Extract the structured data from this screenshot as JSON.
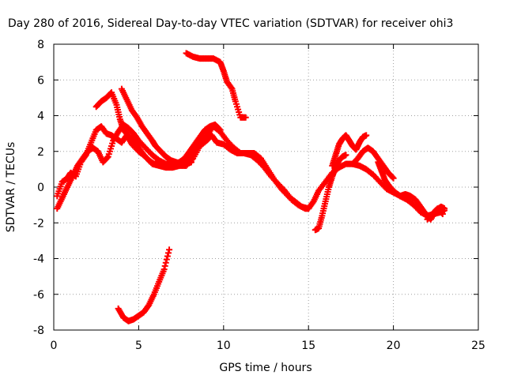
{
  "chart_data": {
    "type": "scatter",
    "title": "Day 280 of 2016, Sidereal Day-to-day VTEC variation (SDTVAR) for receiver ohi3",
    "xlabel": "GPS time / hours",
    "ylabel": "SDTVAR / TECUs",
    "xlim": [
      0,
      25
    ],
    "ylim": [
      -8,
      8
    ],
    "x_ticks": [
      0,
      5,
      10,
      15,
      20,
      25
    ],
    "y_ticks": [
      -8,
      -6,
      -4,
      -2,
      0,
      2,
      4,
      6,
      8
    ],
    "grid": true,
    "grid_style": "dotted",
    "marker": "+",
    "color": "#ff0000",
    "series": [
      {
        "x": [
          0.2,
          0.5,
          0.8,
          1.0,
          1.3,
          1.6,
          1.9,
          2.2,
          2.5,
          2.8,
          3.1,
          3.4,
          3.7,
          4.0,
          4.3,
          4.6,
          5.0,
          5.4,
          5.8,
          6.2,
          6.6,
          7.0,
          7.4,
          7.8,
          8.2,
          8.6,
          9.0,
          9.3,
          9.6,
          10.0,
          10.4,
          10.8,
          11.2,
          11.6,
          12.0,
          12.4,
          12.8,
          13.2,
          13.6,
          14.0,
          14.4,
          14.8,
          15.0,
          15.3,
          15.6,
          16.0,
          16.4,
          16.8,
          17.2,
          17.6,
          18.0,
          18.4,
          18.8,
          19.2,
          19.6,
          20.0,
          20.4,
          20.8,
          21.2,
          21.6,
          22.0,
          22.4,
          22.8,
          23.0
        ],
        "y": [
          -0.5,
          0.3,
          0.5,
          0.8,
          0.6,
          1.4,
          1.8,
          2.5,
          3.2,
          3.4,
          3.0,
          2.9,
          2.7,
          2.5,
          2.9,
          2.4,
          2.0,
          1.7,
          1.3,
          1.2,
          1.1,
          1.1,
          1.2,
          1.2,
          1.6,
          2.3,
          2.6,
          2.9,
          2.5,
          2.4,
          2.1,
          1.9,
          1.9,
          1.8,
          1.5,
          1.1,
          0.6,
          0.2,
          -0.2,
          -0.7,
          -1.0,
          -1.2,
          -1.2,
          -0.8,
          -0.2,
          0.3,
          0.8,
          1.1,
          1.3,
          1.3,
          1.2,
          1.0,
          0.7,
          0.3,
          -0.1,
          -0.3,
          -0.5,
          -0.7,
          -1.0,
          -1.4,
          -1.6,
          -1.5,
          -1.4,
          -1.3
        ]
      },
      {
        "x": [
          0.2,
          0.5,
          0.8,
          1.1,
          1.4,
          1.7,
          2.0,
          2.3,
          2.6,
          2.9,
          3.2,
          3.5,
          3.8,
          4.1,
          4.4,
          4.7,
          5.0,
          5.4,
          5.8,
          6.2,
          6.6,
          7.0,
          7.4,
          7.8,
          8.2,
          8.6,
          9.0,
          9.4,
          9.8,
          10.2,
          10.6,
          11.0,
          11.4,
          11.8,
          12.2,
          12.6,
          13.0,
          13.4,
          13.8,
          14.2,
          14.6,
          15.0
        ],
        "y": [
          -1.2,
          -0.6,
          0.0,
          0.6,
          1.2,
          1.6,
          2.0,
          2.2,
          2.0,
          1.4,
          1.7,
          2.6,
          3.1,
          3.5,
          3.3,
          3.0,
          2.6,
          2.2,
          1.8,
          1.5,
          1.3,
          1.2,
          1.3,
          1.5,
          1.9,
          2.4,
          2.9,
          3.4,
          3.1,
          2.6,
          2.2,
          1.9,
          1.9,
          1.9,
          1.6,
          1.0,
          0.4,
          -0.1,
          -0.5,
          -0.8,
          -1.1,
          -1.2
        ]
      },
      {
        "x": [
          2.5,
          2.8,
          3.1,
          3.4,
          3.7,
          3.9,
          4.1,
          4.4,
          4.7,
          5.0,
          5.3,
          5.6,
          5.9,
          6.2,
          6.5,
          6.8,
          7.1,
          7.4,
          7.7,
          8.0,
          8.3,
          8.6,
          8.9,
          9.2,
          9.5,
          9.8
        ],
        "y": [
          4.5,
          4.8,
          5.0,
          5.3,
          4.6,
          3.8,
          3.2,
          2.9,
          2.6,
          2.2,
          1.8,
          1.5,
          1.3,
          1.3,
          1.2,
          1.2,
          1.3,
          1.4,
          1.6,
          2.0,
          2.4,
          2.8,
          3.2,
          3.4,
          3.5,
          3.2
        ]
      },
      {
        "x": [
          4.0,
          4.3,
          4.6,
          4.9,
          5.2,
          5.5,
          5.8,
          6.0,
          6.3,
          6.6,
          6.9,
          7.2,
          7.5,
          7.8,
          8.1
        ],
        "y": [
          5.5,
          4.9,
          4.3,
          3.9,
          3.4,
          3.0,
          2.6,
          2.3,
          2.0,
          1.7,
          1.5,
          1.4,
          1.3,
          1.3,
          1.4
        ]
      },
      {
        "x": [
          3.8,
          4.1,
          4.4,
          4.7,
          5.0,
          5.3,
          5.6,
          5.9,
          6.2,
          6.5,
          6.8
        ],
        "y": [
          -6.8,
          -7.3,
          -7.5,
          -7.4,
          -7.2,
          -7.0,
          -6.6,
          -6.0,
          -5.3,
          -4.6,
          -3.5
        ]
      },
      {
        "x": [
          7.8,
          8.2,
          8.6,
          9.0,
          9.4,
          9.8,
          10.0,
          10.2,
          10.5,
          10.7,
          11.0,
          11.3
        ],
        "y": [
          7.5,
          7.3,
          7.2,
          7.2,
          7.2,
          7.0,
          6.5,
          5.9,
          5.5,
          4.8,
          3.9,
          3.9
        ]
      },
      {
        "x": [
          15.4,
          15.6,
          15.8,
          16.0,
          16.2,
          16.4,
          16.6,
          16.8,
          17.0,
          17.2
        ],
        "y": [
          -2.4,
          -2.3,
          -1.6,
          -0.8,
          0.0,
          0.6,
          1.1,
          1.5,
          1.7,
          1.8
        ]
      },
      {
        "x": [
          16.4,
          16.6,
          16.8,
          17.0,
          17.2,
          17.4,
          17.6,
          17.8,
          18.0,
          18.2,
          18.4
        ],
        "y": [
          1.2,
          1.8,
          2.4,
          2.7,
          2.9,
          2.6,
          2.3,
          2.1,
          2.5,
          2.8,
          2.9
        ]
      },
      {
        "x": [
          17.6,
          17.9,
          18.2,
          18.5,
          18.8,
          19.1,
          19.4,
          19.7,
          20.0
        ],
        "y": [
          1.3,
          1.6,
          2.0,
          2.2,
          2.0,
          1.6,
          1.2,
          0.8,
          0.5
        ]
      },
      {
        "x": [
          19.1,
          19.3,
          19.5,
          19.8,
          20.1,
          20.4,
          20.7,
          21.0,
          21.3,
          21.6,
          21.9,
          22.2,
          22.5,
          22.8,
          23.0
        ],
        "y": [
          1.4,
          0.9,
          0.4,
          0.0,
          -0.3,
          -0.5,
          -0.4,
          -0.5,
          -0.7,
          -1.1,
          -1.5,
          -1.8,
          -1.3,
          -1.1,
          -1.2
        ]
      },
      {
        "x": [
          22.0,
          22.3,
          22.6,
          22.9
        ],
        "y": [
          -1.8,
          -1.5,
          -1.2,
          -1.5
        ]
      }
    ]
  }
}
